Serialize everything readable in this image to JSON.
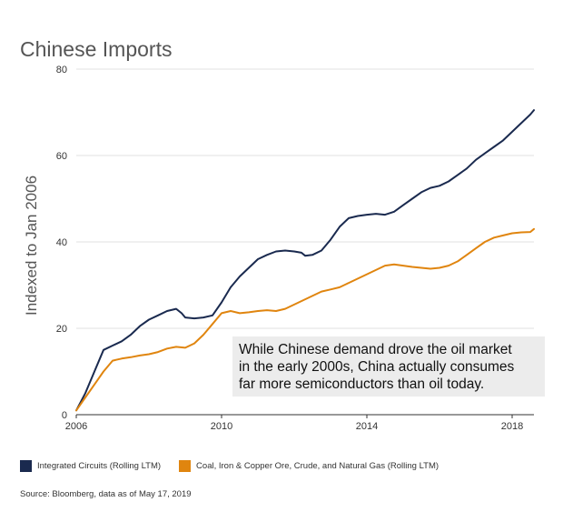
{
  "chart_data": {
    "type": "line",
    "title": "Chinese Imports",
    "ylabel": "Indexed to Jan 2006",
    "xlabel": "",
    "xlim": [
      2006,
      2018.6
    ],
    "ylim": [
      0,
      80
    ],
    "x_ticks": [
      "2006",
      "2010",
      "2014",
      "2018"
    ],
    "y_ticks": [
      "0",
      "20",
      "40",
      "60",
      "80"
    ],
    "grid": true,
    "legend_position": "bottom",
    "annotation": {
      "lines": [
        "While Chinese demand drove the oil market",
        "in the early 2000s, China actually consumes",
        "far more semiconductors than oil today."
      ]
    },
    "series": [
      {
        "name": "Integrated Circuits (Rolling LTM)",
        "color": "#1a2a4f",
        "x": [
          2006.0,
          2006.25,
          2006.5,
          2006.75,
          2007.0,
          2007.25,
          2007.5,
          2007.75,
          2008.0,
          2008.25,
          2008.5,
          2008.75,
          2008.9,
          2009.0,
          2009.25,
          2009.5,
          2009.75,
          2010.0,
          2010.25,
          2010.5,
          2010.75,
          2011.0,
          2011.25,
          2011.5,
          2011.75,
          2012.0,
          2012.2,
          2012.3,
          2012.5,
          2012.75,
          2013.0,
          2013.25,
          2013.5,
          2013.75,
          2014.0,
          2014.25,
          2014.5,
          2014.75,
          2015.0,
          2015.25,
          2015.5,
          2015.75,
          2016.0,
          2016.25,
          2016.5,
          2016.75,
          2017.0,
          2017.25,
          2017.5,
          2017.75,
          2018.0,
          2018.25,
          2018.5,
          2018.6
        ],
        "values": [
          1,
          5,
          10,
          15,
          16,
          17,
          18.5,
          20.5,
          22,
          23,
          24,
          24.5,
          23.5,
          22.5,
          22.3,
          22.5,
          23,
          26,
          29.5,
          32,
          34,
          36,
          37,
          37.8,
          38,
          37.8,
          37.5,
          36.8,
          37,
          38,
          40.5,
          43.5,
          45.5,
          46,
          46.3,
          46.5,
          46.3,
          47,
          48.5,
          50,
          51.5,
          52.5,
          53,
          54,
          55.5,
          57,
          59,
          60.5,
          62,
          63.5,
          65.5,
          67.5,
          69.5,
          70.5
        ]
      },
      {
        "name": "Coal, Iron & Copper Ore, Crude, and Natural Gas (Rolling LTM)",
        "color": "#e0850f",
        "x": [
          2006.0,
          2006.25,
          2006.5,
          2006.75,
          2007.0,
          2007.25,
          2007.5,
          2007.75,
          2008.0,
          2008.25,
          2008.5,
          2008.75,
          2009.0,
          2009.25,
          2009.5,
          2009.75,
          2010.0,
          2010.25,
          2010.5,
          2010.75,
          2011.0,
          2011.25,
          2011.5,
          2011.75,
          2012.0,
          2012.25,
          2012.5,
          2012.75,
          2013.0,
          2013.25,
          2013.5,
          2013.75,
          2014.0,
          2014.25,
          2014.5,
          2014.75,
          2015.0,
          2015.25,
          2015.5,
          2015.75,
          2016.0,
          2016.25,
          2016.5,
          2016.75,
          2017.0,
          2017.25,
          2017.5,
          2017.75,
          2018.0,
          2018.25,
          2018.5,
          2018.6
        ],
        "values": [
          1,
          4,
          7,
          10,
          12.5,
          13,
          13.3,
          13.7,
          14,
          14.5,
          15.3,
          15.7,
          15.5,
          16.5,
          18.5,
          21,
          23.5,
          24,
          23.5,
          23.7,
          24,
          24.2,
          24,
          24.5,
          25.5,
          26.5,
          27.5,
          28.5,
          29,
          29.5,
          30.5,
          31.5,
          32.5,
          33.5,
          34.5,
          34.8,
          34.5,
          34.2,
          34,
          33.8,
          34,
          34.5,
          35.5,
          37,
          38.5,
          40,
          41,
          41.5,
          42,
          42.2,
          42.3,
          43
        ]
      }
    ]
  },
  "source": "Source: Bloomberg, data as of May 17, 2019"
}
